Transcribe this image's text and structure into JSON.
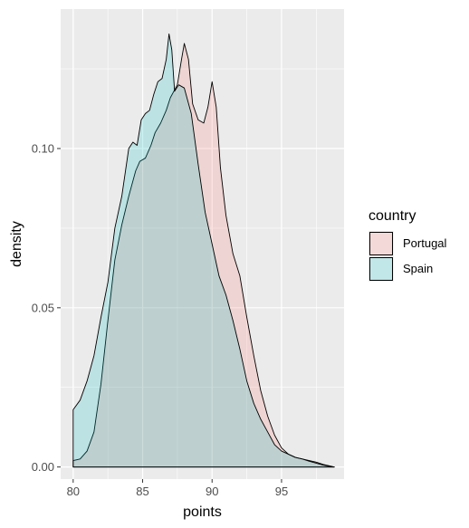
{
  "chart_data": {
    "type": "area",
    "subtype": "density",
    "xlabel": "points",
    "ylabel": "density",
    "xlim": [
      79.1,
      99.5
    ],
    "ylim": [
      -0.0038,
      0.1438
    ],
    "x_ticks": [
      80,
      85,
      90,
      95
    ],
    "x_tick_labels": [
      "80",
      "85",
      "90",
      "95"
    ],
    "y_ticks": [
      0.0,
      0.05,
      0.1
    ],
    "y_tick_labels": [
      "0.00",
      "0.05",
      "0.10"
    ],
    "grid": true,
    "legend": {
      "title": "country",
      "position": "right"
    },
    "series": [
      {
        "name": "Portugal",
        "fill": "#F8766D",
        "x": [
          80,
          80.5,
          81,
          81.5,
          82,
          82.5,
          83,
          83.5,
          84,
          84.5,
          84.8,
          85.2,
          85.6,
          85.9,
          86.3,
          86.7,
          87.0,
          87.5,
          87.8,
          88.0,
          88.3,
          88.6,
          89.0,
          89.4,
          89.7,
          90.0,
          90.3,
          90.6,
          91.0,
          91.5,
          92.0,
          92.5,
          93.0,
          93.5,
          94.0,
          94.5,
          95.0,
          95.5,
          96.0,
          96.5,
          97.0,
          97.5,
          98.0,
          98.5,
          98.8
        ],
        "values": [
          0.002,
          0.0025,
          0.005,
          0.011,
          0.026,
          0.046,
          0.065,
          0.076,
          0.085,
          0.093,
          0.096,
          0.097,
          0.101,
          0.105,
          0.108,
          0.112,
          0.116,
          0.12,
          0.128,
          0.133,
          0.128,
          0.114,
          0.109,
          0.108,
          0.113,
          0.121,
          0.113,
          0.094,
          0.079,
          0.067,
          0.06,
          0.047,
          0.035,
          0.024,
          0.016,
          0.01,
          0.006,
          0.004,
          0.003,
          0.0025,
          0.002,
          0.0015,
          0.0008,
          0.0003,
          0.0
        ]
      },
      {
        "name": "Spain",
        "fill": "#00BFC4",
        "x": [
          80,
          80.5,
          81,
          81.5,
          82,
          82.5,
          83,
          83.5,
          84,
          84.3,
          84.6,
          84.9,
          85.2,
          85.5,
          85.8,
          86.1,
          86.4,
          86.7,
          86.9,
          87.1,
          87.3,
          87.6,
          88.0,
          88.5,
          89.0,
          89.5,
          90.0,
          90.5,
          91.0,
          91.5,
          92.0,
          92.5,
          93.0,
          93.5,
          94.0,
          94.5,
          95.0,
          95.5,
          96.0,
          96.5,
          97.0,
          97.5,
          98.0,
          98.5,
          98.8
        ],
        "values": [
          0.018,
          0.021,
          0.027,
          0.035,
          0.047,
          0.058,
          0.075,
          0.085,
          0.1,
          0.102,
          0.101,
          0.109,
          0.111,
          0.112,
          0.117,
          0.121,
          0.122,
          0.128,
          0.136,
          0.131,
          0.118,
          0.12,
          0.119,
          0.111,
          0.095,
          0.08,
          0.07,
          0.06,
          0.054,
          0.046,
          0.037,
          0.027,
          0.02,
          0.015,
          0.011,
          0.007,
          0.005,
          0.004,
          0.003,
          0.0025,
          0.0018,
          0.0012,
          0.0006,
          0.0002,
          0.0
        ]
      }
    ]
  }
}
